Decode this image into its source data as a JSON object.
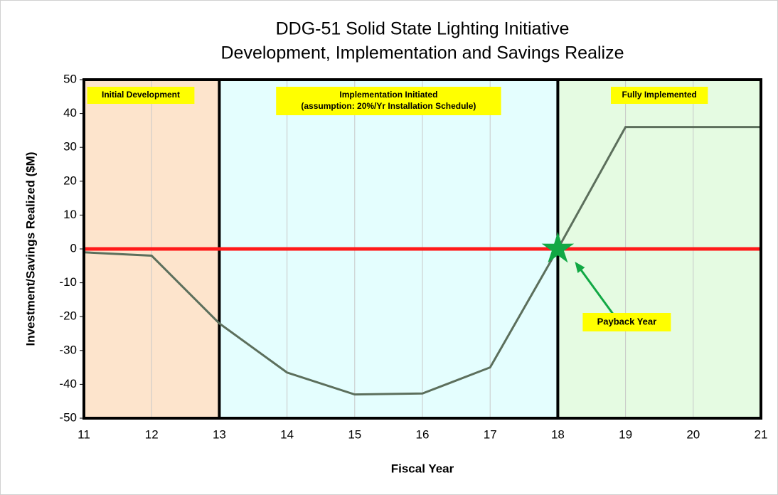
{
  "chart_data": {
    "type": "line",
    "title_lines": [
      "DDG-51 Solid State Lighting Initiative",
      "Development, Implementation and Savings Realize"
    ],
    "x_label": "Fiscal Year",
    "y_label": "Investment/Savings Realized ($M)",
    "x": [
      11,
      12,
      13,
      14,
      15,
      16,
      17,
      18,
      19,
      20,
      21
    ],
    "series": [
      {
        "color": "#5c6f5c",
        "values": [
          -1,
          -2,
          -22,
          -36.5,
          -43,
          -42.7,
          -35,
          0,
          36,
          36,
          36
        ]
      }
    ],
    "reference_line": {
      "value": 0,
      "color": "#ff1a1a"
    },
    "xlim": [
      11,
      21
    ],
    "xticks": [
      11,
      12,
      13,
      14,
      15,
      16,
      17,
      18,
      19,
      20,
      21
    ],
    "ylim": [
      -50,
      50
    ],
    "yticks": [
      -50,
      -40,
      -30,
      -20,
      -10,
      0,
      10,
      20,
      30,
      40,
      50
    ],
    "grid": "x",
    "regions": [
      {
        "from": 11,
        "to": 13,
        "color": "#fde4cc",
        "label_lines": [
          "Initial Development"
        ]
      },
      {
        "from": 13,
        "to": 18,
        "color": "#e4fefe",
        "label_lines": [
          "Implementation Initiated",
          "(assumption: 20%/Yr Installation Schedule)"
        ]
      },
      {
        "from": 18,
        "to": 21,
        "color": "#e5fbe2",
        "label_lines": [
          "Fully Implemented"
        ]
      }
    ],
    "annotation": {
      "text": "Payback Year",
      "x": 18,
      "y": 0,
      "color": "#11a844"
    }
  }
}
